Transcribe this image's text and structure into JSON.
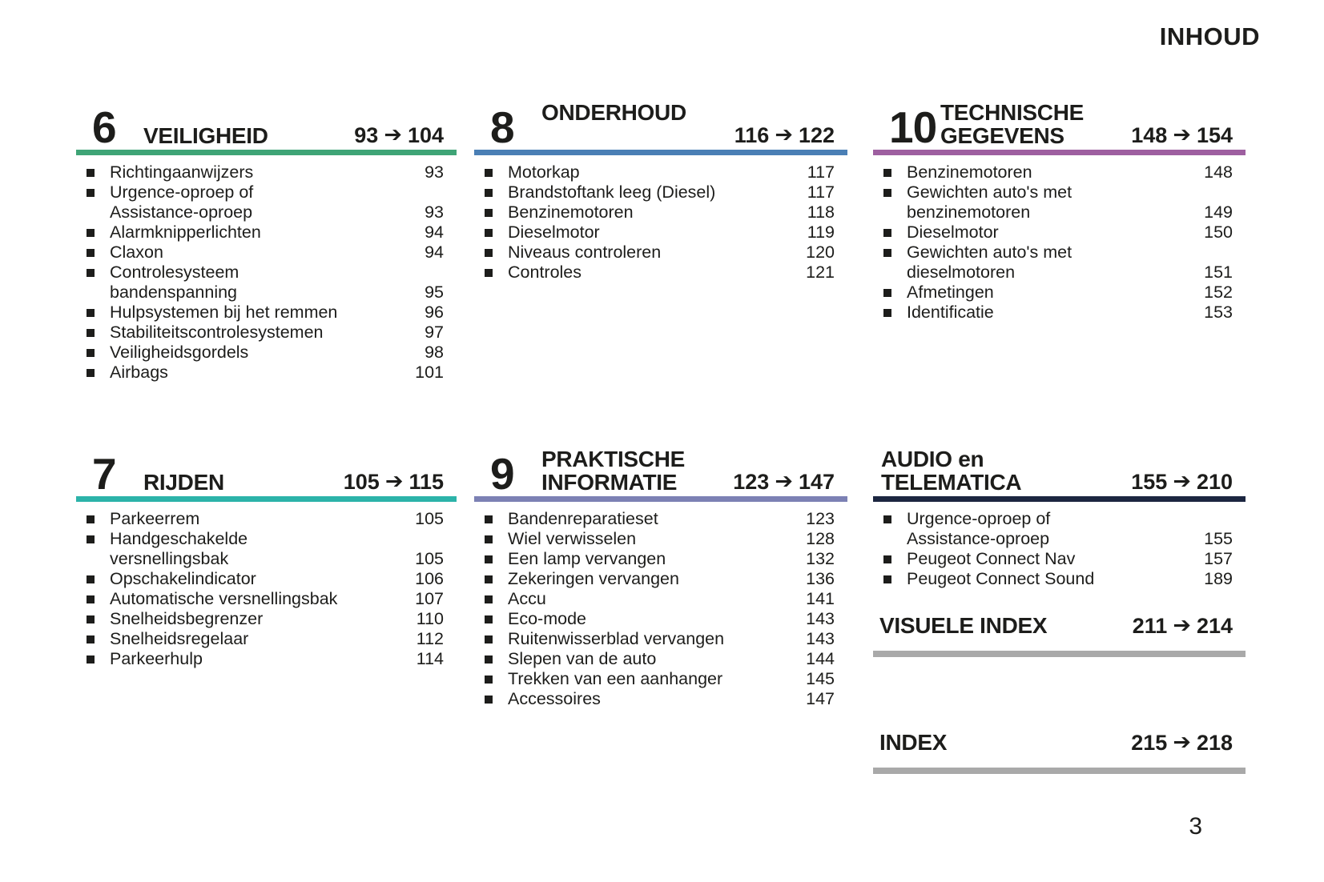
{
  "page": {
    "title": "INHOUD",
    "page_number": "3"
  },
  "icons": {
    "arrow_right": "➔",
    "bullet": "square"
  },
  "colors": {
    "green": "#3fa476",
    "teal": "#2cb3a9",
    "blue": "#4a7fb5",
    "slate": "#7c81b4",
    "purple": "#9e5fa0",
    "navy": "#1c2640",
    "gray_rule": "#a9a9a9",
    "text": "#1d1d1b"
  },
  "sections": [
    {
      "key": "sec6",
      "number": "6",
      "title_lines": [
        "",
        "VEILIGHEID"
      ],
      "range": {
        "from": "93",
        "to": "104"
      },
      "bar_color": "#3fa476",
      "items": [
        {
          "lines": [
            "Richtingaanwijzers"
          ],
          "page": "93"
        },
        {
          "lines": [
            "Urgence-oproep of",
            "Assistance-oproep"
          ],
          "page": "93"
        },
        {
          "lines": [
            "Alarmknipperlichten"
          ],
          "page": "94"
        },
        {
          "lines": [
            "Claxon"
          ],
          "page": "94"
        },
        {
          "lines": [
            "Controlesysteem",
            "bandenspanning"
          ],
          "page": "95"
        },
        {
          "lines": [
            "Hulpsystemen bij het remmen"
          ],
          "page": "96"
        },
        {
          "lines": [
            "Stabiliteitscontrolesystemen"
          ],
          "page": "97"
        },
        {
          "lines": [
            "Veiligheidsgordels"
          ],
          "page": "98"
        },
        {
          "lines": [
            "Airbags"
          ],
          "page": "101"
        }
      ]
    },
    {
      "key": "sec8",
      "number": "8",
      "title_lines": [
        "ONDERHOUD",
        ""
      ],
      "range": {
        "from": "116",
        "to": "122"
      },
      "bar_color": "#4a7fb5",
      "items": [
        {
          "lines": [
            "Motorkap"
          ],
          "page": "117"
        },
        {
          "lines": [
            "Brandstoftank leeg (Diesel)"
          ],
          "page": "117"
        },
        {
          "lines": [
            "Benzinemotoren"
          ],
          "page": "118"
        },
        {
          "lines": [
            "Dieselmotor"
          ],
          "page": "119"
        },
        {
          "lines": [
            "Niveaus controleren"
          ],
          "page": "120"
        },
        {
          "lines": [
            "Controles"
          ],
          "page": "121"
        }
      ]
    },
    {
      "key": "sec10",
      "number": "10",
      "title_lines": [
        "TECHNISCHE",
        "GEGEVENS"
      ],
      "range": {
        "from": "148",
        "to": "154"
      },
      "bar_color": "#9e5fa0",
      "items": [
        {
          "lines": [
            "Benzinemotoren"
          ],
          "page": "148"
        },
        {
          "lines": [
            "Gewichten auto's met",
            "benzinemotoren"
          ],
          "page": "149"
        },
        {
          "lines": [
            "Dieselmotor"
          ],
          "page": "150"
        },
        {
          "lines": [
            "Gewichten auto's met",
            "dieselmotoren"
          ],
          "page": "151"
        },
        {
          "lines": [
            "Afmetingen"
          ],
          "page": "152"
        },
        {
          "lines": [
            "Identificatie"
          ],
          "page": "153"
        }
      ]
    },
    {
      "key": "sec7",
      "number": "7",
      "title_lines": [
        "",
        "RIJDEN"
      ],
      "range": {
        "from": "105",
        "to": "115"
      },
      "bar_color": "#2cb3a9",
      "items": [
        {
          "lines": [
            "Parkeerrem"
          ],
          "page": "105"
        },
        {
          "lines": [
            "Handgeschakelde",
            "versnellingsbak"
          ],
          "page": "105"
        },
        {
          "lines": [
            "Opschakelindicator"
          ],
          "page": "106"
        },
        {
          "lines": [
            "Automatische versnellingsbak"
          ],
          "page": "107"
        },
        {
          "lines": [
            "Snelheidsbegrenzer"
          ],
          "page": "110"
        },
        {
          "lines": [
            "Snelheidsregelaar"
          ],
          "page": "112"
        },
        {
          "lines": [
            "Parkeerhulp"
          ],
          "page": "114"
        }
      ]
    },
    {
      "key": "sec9",
      "number": "9",
      "title_lines": [
        "PRAKTISCHE",
        "INFORMATIE"
      ],
      "range": {
        "from": "123",
        "to": "147"
      },
      "bar_color": "#7c81b4",
      "items": [
        {
          "lines": [
            "Bandenreparatieset"
          ],
          "page": "123"
        },
        {
          "lines": [
            "Wiel verwisselen"
          ],
          "page": "128"
        },
        {
          "lines": [
            "Een lamp vervangen"
          ],
          "page": "132"
        },
        {
          "lines": [
            "Zekeringen vervangen"
          ],
          "page": "136"
        },
        {
          "lines": [
            "Accu"
          ],
          "page": "141"
        },
        {
          "lines": [
            "Eco-mode"
          ],
          "page": "143"
        },
        {
          "lines": [
            "Ruitenwisserblad vervangen"
          ],
          "page": "143"
        },
        {
          "lines": [
            "Slepen van de auto"
          ],
          "page": "144"
        },
        {
          "lines": [
            "Trekken van een aanhanger"
          ],
          "page": "145"
        },
        {
          "lines": [
            "Accessoires"
          ],
          "page": "147"
        }
      ]
    },
    {
      "key": "secaudio",
      "number": "",
      "title_lines": [
        "AUDIO en",
        "TELEMATICA"
      ],
      "range": {
        "from": "155",
        "to": "210"
      },
      "bar_color": "#1c2640",
      "items": [
        {
          "lines": [
            "Urgence-oproep of",
            "Assistance-oproep"
          ],
          "page": "155"
        },
        {
          "lines": [
            "Peugeot Connect Nav"
          ],
          "page": "157"
        },
        {
          "lines": [
            "Peugeot Connect Sound"
          ],
          "page": "189"
        }
      ]
    }
  ],
  "index_blocks": [
    {
      "key": "visuele",
      "label": "VISUELE INDEX",
      "range": {
        "from": "211",
        "to": "214"
      },
      "bar_color": "#a9a9a9"
    },
    {
      "key": "indexblk",
      "label": "INDEX",
      "range": {
        "from": "215",
        "to": "218"
      },
      "bar_color": "#a9a9a9"
    }
  ]
}
